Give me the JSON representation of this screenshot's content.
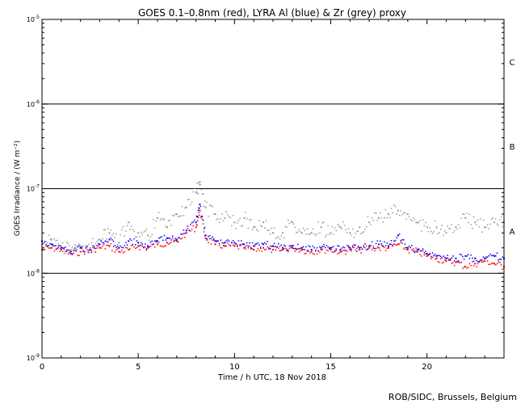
{
  "chart_data": {
    "type": "scatter",
    "title": "GOES 0.1–0.8nm (red), LYRA Al (blue) & Zr (grey) proxy",
    "xlabel": "Time / h UTC, 18 Nov 2018",
    "ylabel": "GOES Irradiance / (W m⁻²)",
    "xlim": [
      0,
      24
    ],
    "ylim": [
      1e-09,
      1e-05
    ],
    "yscale": "log",
    "x_ticks": [
      0,
      5,
      10,
      15,
      20
    ],
    "y_ticks": [
      {
        "value": 1e-09,
        "mantissa": "10",
        "exp": "-9"
      },
      {
        "value": 1e-08,
        "mantissa": "10",
        "exp": "-8"
      },
      {
        "value": 1e-07,
        "mantissa": "10",
        "exp": "-7"
      },
      {
        "value": 1e-06,
        "mantissa": "10",
        "exp": "-6"
      },
      {
        "value": 1e-05,
        "mantissa": "10",
        "exp": "-5"
      }
    ],
    "class_thresholds": [
      1e-08,
      1e-07,
      1e-06
    ],
    "class_labels": [
      {
        "label": "A",
        "value": 3.16e-08
      },
      {
        "label": "B",
        "value": 3.16e-07
      },
      {
        "label": "C",
        "value": 3.16e-06
      }
    ],
    "series": [
      {
        "name": "GOES 0.1–0.8nm",
        "color": "#ff0000",
        "x": [
          0.0,
          0.5,
          1.0,
          1.5,
          2.0,
          2.5,
          3.0,
          3.5,
          4.0,
          4.5,
          5.0,
          5.5,
          6.0,
          6.5,
          7.0,
          7.5,
          8.0,
          8.2,
          8.5,
          9.0,
          9.5,
          10.0,
          10.5,
          11.0,
          11.5,
          12.0,
          12.5,
          13.0,
          13.5,
          14.0,
          14.5,
          15.0,
          15.5,
          16.0,
          16.5,
          17.0,
          17.5,
          18.0,
          18.5,
          19.0,
          19.5,
          20.0,
          20.5,
          21.0,
          21.5,
          22.0,
          22.5,
          23.0,
          23.5,
          24.0
        ],
        "y": [
          1.9e-08,
          2e-08,
          1.9e-08,
          1.7e-08,
          1.8e-08,
          1.9e-08,
          2e-08,
          2.1e-08,
          1.8e-08,
          1.9e-08,
          2.1e-08,
          2e-08,
          2.2e-08,
          2.3e-08,
          2.4e-08,
          3e-08,
          3.5e-08,
          5.5e-08,
          2.6e-08,
          2.2e-08,
          2.1e-08,
          2.1e-08,
          2e-08,
          1.9e-08,
          2e-08,
          1.9e-08,
          1.9e-08,
          2e-08,
          1.9e-08,
          1.8e-08,
          1.9e-08,
          1.9e-08,
          1.8e-08,
          1.9e-08,
          1.9e-08,
          2e-08,
          2e-08,
          2e-08,
          2.2e-08,
          1.9e-08,
          1.8e-08,
          1.6e-08,
          1.5e-08,
          1.4e-08,
          1.35e-08,
          1.2e-08,
          1.3e-08,
          1.4e-08,
          1.3e-08,
          1.2e-08
        ]
      },
      {
        "name": "LYRA Al",
        "color": "#0000ff",
        "x": [
          0.0,
          0.5,
          1.0,
          1.5,
          2.0,
          2.5,
          3.0,
          3.5,
          4.0,
          4.5,
          5.0,
          5.5,
          6.0,
          6.5,
          7.0,
          7.5,
          8.0,
          8.2,
          8.5,
          9.0,
          9.5,
          10.0,
          10.5,
          11.0,
          11.5,
          12.0,
          12.5,
          13.0,
          13.5,
          14.0,
          14.5,
          15.0,
          15.5,
          16.0,
          16.5,
          17.0,
          17.5,
          18.0,
          18.5,
          19.0,
          19.5,
          20.0,
          20.5,
          21.0,
          21.5,
          22.0,
          22.5,
          23.0,
          23.5,
          24.0
        ],
        "y": [
          2.4e-08,
          2.2e-08,
          2e-08,
          1.8e-08,
          2e-08,
          1.9e-08,
          2.2e-08,
          2.5e-08,
          2e-08,
          2.4e-08,
          2.3e-08,
          2.1e-08,
          2.4e-08,
          2.6e-08,
          2.5e-08,
          3.2e-08,
          4e-08,
          6.5e-08,
          2.8e-08,
          2.4e-08,
          2.3e-08,
          2.3e-08,
          2.2e-08,
          2.1e-08,
          2.2e-08,
          2.1e-08,
          2e-08,
          2.1e-08,
          2e-08,
          1.9e-08,
          2e-08,
          2e-08,
          1.9e-08,
          2e-08,
          2e-08,
          2.1e-08,
          2.2e-08,
          2.1e-08,
          2.8e-08,
          2e-08,
          1.9e-08,
          1.7e-08,
          1.6e-08,
          1.5e-08,
          1.5e-08,
          1.6e-08,
          1.5e-08,
          1.5e-08,
          1.6e-08,
          1.5e-08
        ]
      },
      {
        "name": "Zr proxy",
        "color": "#999999",
        "x": [
          0.0,
          0.5,
          1.0,
          1.5,
          2.0,
          2.5,
          3.0,
          3.5,
          4.0,
          4.5,
          5.0,
          5.5,
          6.0,
          6.5,
          7.0,
          7.5,
          8.0,
          8.2,
          8.5,
          9.0,
          9.5,
          10.0,
          10.5,
          11.0,
          11.5,
          12.0,
          12.5,
          13.0,
          13.5,
          14.0,
          14.5,
          15.0,
          15.5,
          16.0,
          16.5,
          17.0,
          17.5,
          18.0,
          18.5,
          19.0,
          19.5,
          20.0,
          20.5,
          21.0,
          21.5,
          22.0,
          22.5,
          23.0,
          23.5,
          24.0
        ],
        "y": [
          2.2e-08,
          2.5e-08,
          2.1e-08,
          1.9e-08,
          2.1e-08,
          2e-08,
          2.5e-08,
          3e-08,
          2.3e-08,
          4e-08,
          3e-08,
          2.8e-08,
          4.5e-08,
          3.5e-08,
          5e-08,
          6e-08,
          9e-08,
          1.2e-07,
          6e-08,
          5e-08,
          4.5e-08,
          4e-08,
          4.5e-08,
          3.5e-08,
          4e-08,
          3e-08,
          3e-08,
          4e-08,
          3e-08,
          3e-08,
          3.5e-08,
          3e-08,
          3.5e-08,
          3e-08,
          3.5e-08,
          4e-08,
          4.5e-08,
          5e-08,
          5.5e-08,
          5e-08,
          4e-08,
          3.5e-08,
          3.5e-08,
          3e-08,
          3.5e-08,
          4.5e-08,
          4e-08,
          3.5e-08,
          4e-08,
          4e-08
        ]
      }
    ],
    "grid": false,
    "legend": "none"
  },
  "credit": "ROB/SIDC, Brussels, Belgium"
}
